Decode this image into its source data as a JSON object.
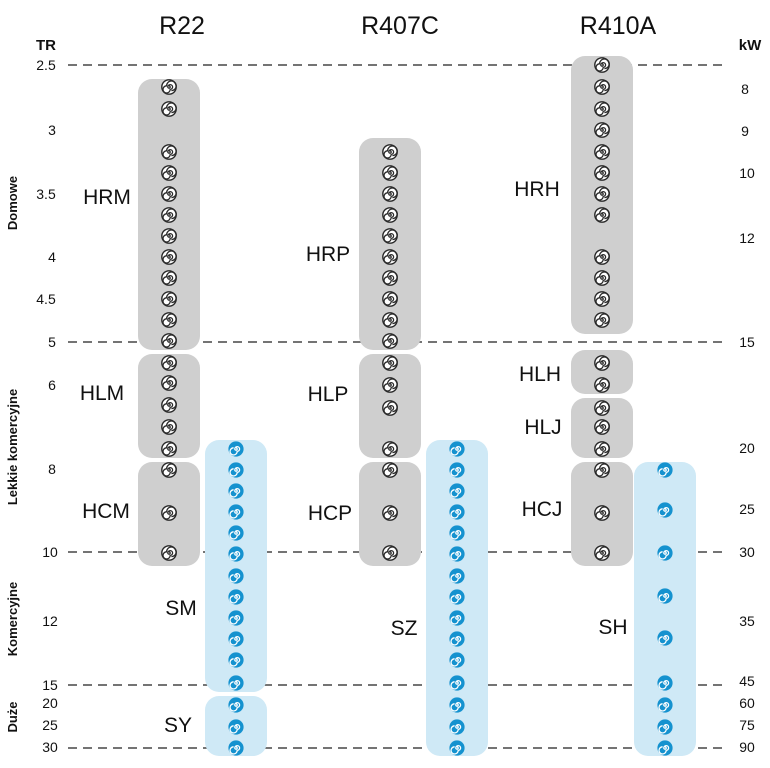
{
  "columns": [
    "R22",
    "R407C",
    "R410A"
  ],
  "left_unit": "TR",
  "right_unit": "kW",
  "tr_ticks": [
    "2.5",
    "3",
    "3.5",
    "4",
    "4.5",
    "5",
    "6",
    "8",
    "10",
    "12",
    "15",
    "20",
    "25",
    "30"
  ],
  "kw_ticks": [
    "8",
    "9",
    "10",
    "12",
    "15",
    "20",
    "25",
    "30",
    "35",
    "45",
    "60",
    "75",
    "90"
  ],
  "categories": [
    "Domowe",
    "Lekkie komercyjne",
    "Komercyjne",
    "Duże"
  ],
  "families": [
    "HRM",
    "HLM",
    "HCM",
    "SM",
    "SY",
    "HRP",
    "HLP",
    "HCP",
    "SZ",
    "HRH",
    "HLH",
    "HLJ",
    "HCJ",
    "SH"
  ],
  "colors": {
    "gray_pill": "#cfcfcf",
    "blue_pill": "#cfe9f6",
    "gray_icon": "#2a2a2a",
    "blue_icon": "#1592cf"
  },
  "icon_names": {
    "gray": "scroll-spiral-gray-icon",
    "blue": "scroll-spiral-blue-icon"
  }
}
